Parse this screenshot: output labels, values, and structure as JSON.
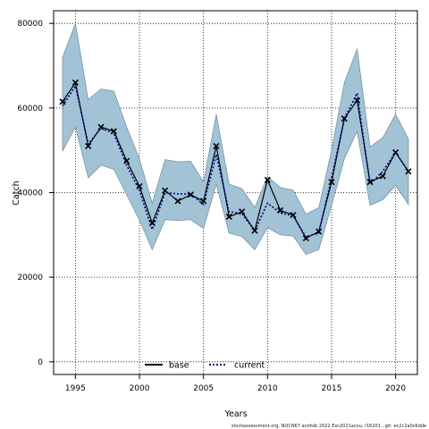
{
  "chart_data": {
    "type": "line",
    "title": "",
    "xlabel": "Years",
    "ylabel": "Catch",
    "xlim": [
      1993.3,
      2021.7
    ],
    "ylim": [
      -3000,
      83000
    ],
    "x_ticks": [
      1995,
      2000,
      2005,
      2010,
      2015,
      2020
    ],
    "y_ticks": [
      0,
      20000,
      40000,
      60000,
      80000
    ],
    "grid": "dotted",
    "legend_position": "bottom-center",
    "colors": {
      "band_fill": "#a1c3d5",
      "band_edge": "#6f8a99",
      "base_line": "#000000",
      "current_line": "#00008b",
      "observed_marker": "#000000"
    },
    "years": [
      1994,
      1995,
      1996,
      1997,
      1998,
      1999,
      2000,
      2001,
      2002,
      2003,
      2004,
      2005,
      2006,
      2007,
      2008,
      2009,
      2010,
      2011,
      2012,
      2013,
      2014,
      2015,
      2016,
      2017,
      2018,
      2019,
      2020,
      2021
    ],
    "observed": [
      61500,
      66000,
      51000,
      55500,
      54500,
      47500,
      41500,
      32800,
      40500,
      38000,
      39500,
      38000,
      51000,
      34300,
      35500,
      31000,
      43000,
      35800,
      34700,
      29200,
      30800,
      42500,
      57500,
      61800,
      42500,
      43900,
      49500,
      45000
    ],
    "series": [
      {
        "name": "base",
        "values": [
          61500,
          66000,
          51000,
          55500,
          54500,
          47500,
          41500,
          32800,
          40500,
          38000,
          39500,
          38000,
          51000,
          34300,
          35500,
          31000,
          43000,
          35800,
          34700,
          29200,
          30800,
          42500,
          57500,
          61800,
          42500,
          43900,
          49500,
          45000
        ]
      },
      {
        "name": "current",
        "values": [
          60500,
          65200,
          51500,
          55200,
          54000,
          46500,
          40500,
          31300,
          40000,
          39700,
          39700,
          37200,
          49000,
          35500,
          35000,
          31000,
          37500,
          35200,
          34500,
          29500,
          30500,
          43500,
          57500,
          63500,
          42000,
          45000,
          49500,
          45000
        ]
      }
    ],
    "band": {
      "upper": [
        72000,
        80000,
        62000,
        64500,
        64000,
        55500,
        48000,
        37500,
        47800,
        47300,
        47400,
        42500,
        58500,
        42000,
        40900,
        36500,
        43800,
        41200,
        40600,
        34900,
        36400,
        50000,
        66000,
        74000,
        50800,
        53000,
        58500,
        52700
      ],
      "lower": [
        49800,
        55500,
        43500,
        46500,
        45500,
        39500,
        33500,
        26500,
        33600,
        33400,
        33600,
        31500,
        42000,
        30400,
        29600,
        26500,
        31700,
        30000,
        29700,
        25400,
        26500,
        37000,
        48000,
        54500,
        37000,
        38300,
        41700,
        37200
      ]
    },
    "legend": [
      {
        "label": "base",
        "style": "solid"
      },
      {
        "label": "current",
        "style": "dotted"
      }
    ],
    "footnote": "stockassessment.org, NOCN67 acofsib 2022 Exc2021acou, r16201 , git: ec2c2a0c6dde"
  }
}
